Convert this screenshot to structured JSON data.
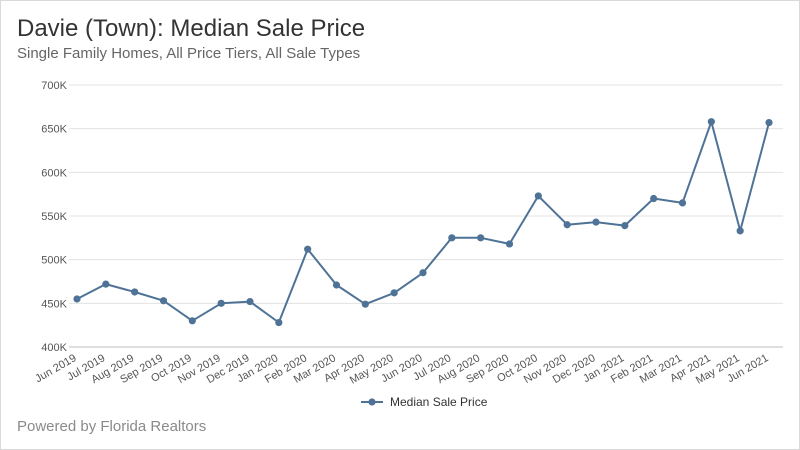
{
  "title": "Davie (Town): Median Sale Price",
  "subtitle": "Single Family Homes, All Price Tiers, All Sale Types",
  "footer": "Powered by Florida Realtors",
  "chart_data": {
    "type": "line",
    "title": "Davie (Town): Median Sale Price",
    "subtitle": "Single Family Homes, All Price Tiers, All Sale Types",
    "xlabel": "",
    "ylabel": "",
    "categories": [
      "Jun 2019",
      "Jul 2019",
      "Aug 2019",
      "Sep 2019",
      "Oct 2019",
      "Nov 2019",
      "Dec 2019",
      "Jan 2020",
      "Feb 2020",
      "Mar 2020",
      "Apr 2020",
      "May 2020",
      "Jun 2020",
      "Jul 2020",
      "Aug 2020",
      "Sep 2020",
      "Oct 2020",
      "Nov 2020",
      "Dec 2020",
      "Jan 2021",
      "Feb 2021",
      "Mar 2021",
      "Apr 2021",
      "May 2021",
      "Jun 2021"
    ],
    "series": [
      {
        "name": "Median Sale Price",
        "color": "#4e7396",
        "values": [
          455000,
          472000,
          463000,
          453000,
          430000,
          450000,
          452000,
          428000,
          512000,
          471000,
          449000,
          462000,
          485000,
          525000,
          525000,
          518000,
          573000,
          540000,
          543000,
          539000,
          570000,
          565000,
          658000,
          533000,
          657000
        ]
      }
    ],
    "ylim": [
      400000,
      700000
    ],
    "yticks": [
      400000,
      450000,
      500000,
      550000,
      600000,
      650000,
      700000
    ],
    "ytick_labels": [
      "400K",
      "450K",
      "500K",
      "550K",
      "600K",
      "650K",
      "700K"
    ],
    "grid": true,
    "legend_position": "bottom-center"
  }
}
